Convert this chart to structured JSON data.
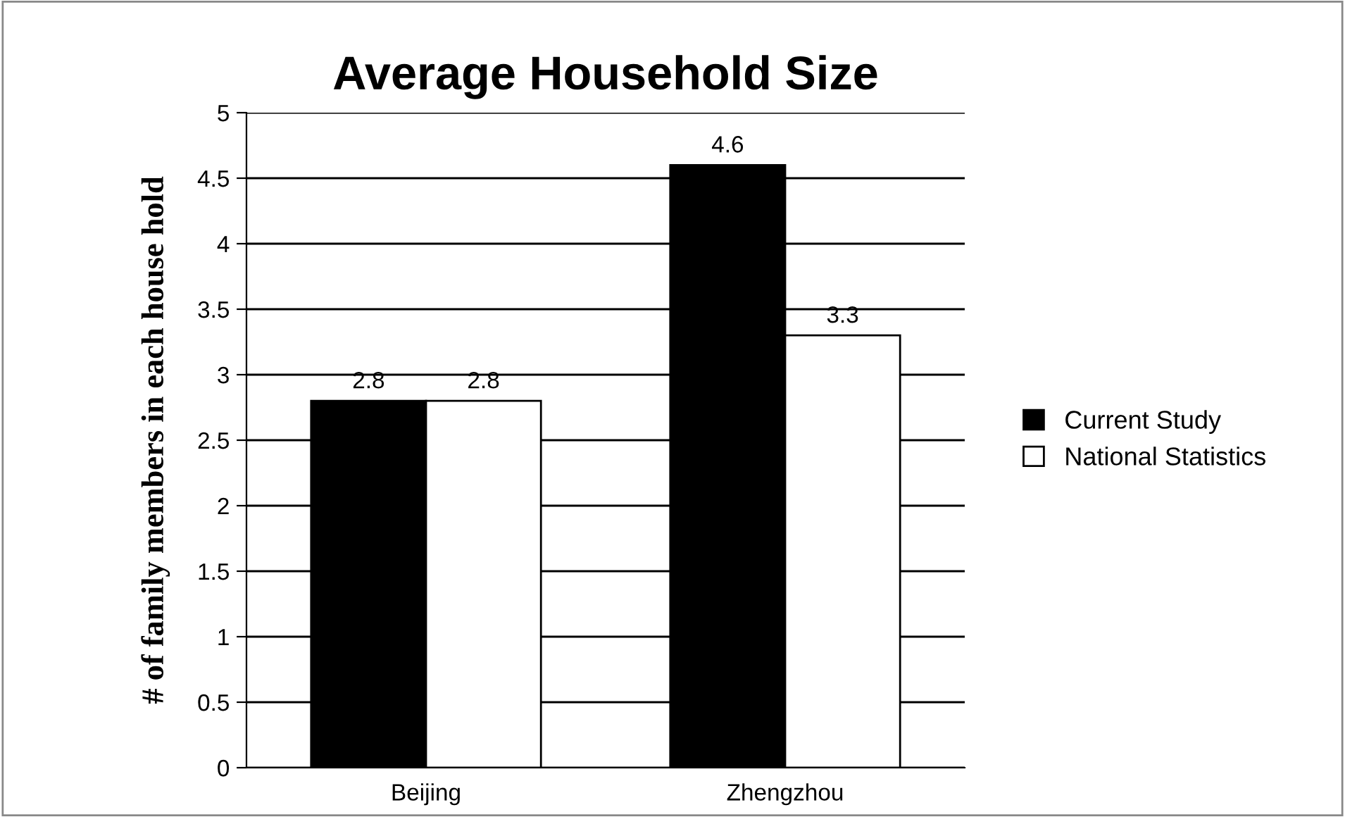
{
  "chart_data": {
    "type": "bar",
    "title": "Average Household Size",
    "ylabel": "# of family members in each house hold",
    "categories": [
      "Beijing",
      "Zhengzhou"
    ],
    "series": [
      {
        "name": "Current Study",
        "color": "#000000",
        "values": [
          2.8,
          4.6
        ]
      },
      {
        "name": "National Statistics",
        "color": "#ffffff",
        "values": [
          2.8,
          3.3
        ]
      }
    ],
    "ylim": [
      0,
      5
    ],
    "yticks": [
      0,
      0.5,
      1,
      1.5,
      2,
      2.5,
      3,
      3.5,
      4,
      4.5,
      5
    ],
    "grid": "y",
    "legend": "right",
    "data_labels": true
  }
}
